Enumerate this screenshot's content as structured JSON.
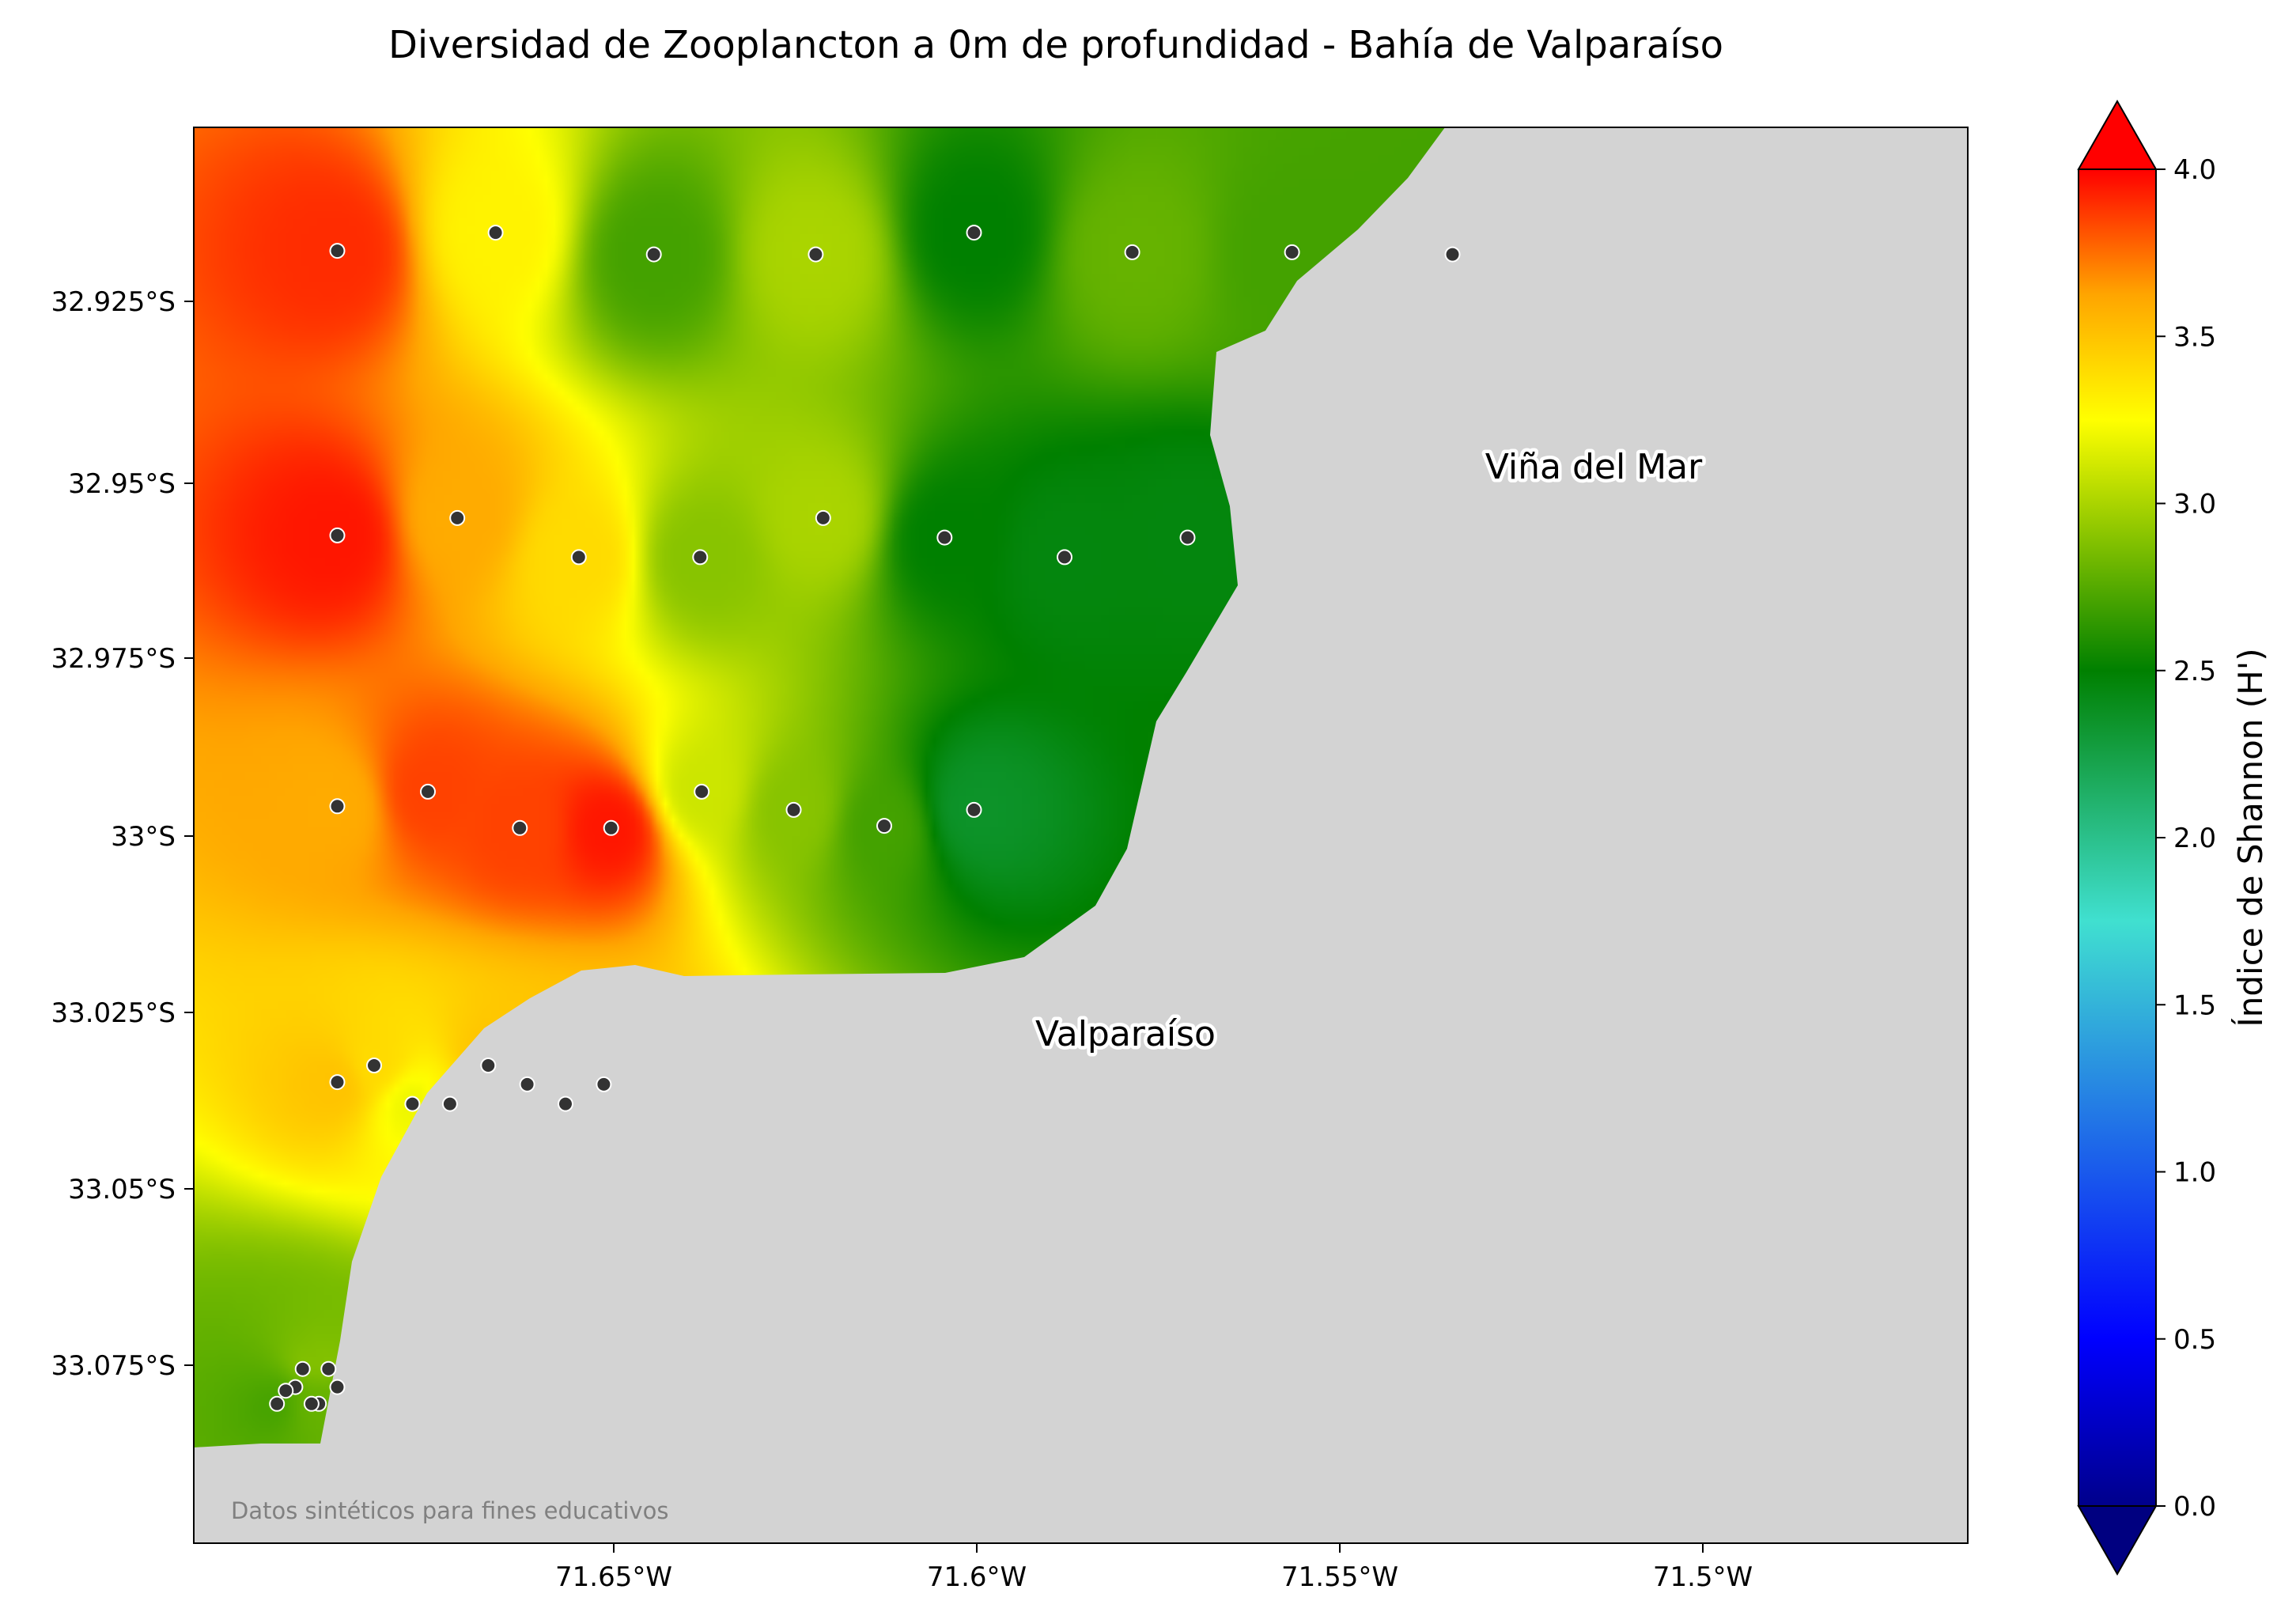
{
  "title": "Diversidad de Zooplancton a 0m de profundidad - Bahía de Valparaíso",
  "x_ticks": [
    "71.65°W",
    "71.6°W",
    "71.55°W",
    "71.5°W"
  ],
  "y_ticks": [
    "32.925°S",
    "32.95°S",
    "32.975°S",
    "33°S",
    "33.025°S",
    "33.05°S",
    "33.075°S"
  ],
  "places": [
    "Viña del Mar",
    "Valparaíso"
  ],
  "colorbar": {
    "label": "Índice de Shannon (H')",
    "ticks": [
      "0.0",
      "0.5",
      "1.0",
      "1.5",
      "2.0",
      "2.5",
      "3.0",
      "3.5",
      "4.0"
    ],
    "colors": [
      "#00008B",
      "#0000FF",
      "#40E0D0",
      "#008000",
      "#FFFF00",
      "#FFA500",
      "#FF0000"
    ],
    "extend": "both"
  },
  "note": "Datos sintéticos para fines educativos",
  "land_color": "#D3D3D3",
  "chart_data": {
    "type": "heatmap",
    "title": "Diversidad de Zooplancton a 0m de profundidad - Bahía de Valparaíso",
    "xlabel": "",
    "ylabel": "",
    "xlim": [
      -71.706,
      -71.465
    ],
    "ylim": [
      -33.101,
      -32.906
    ],
    "value_label": "Índice de Shannon (H')",
    "vmin": 0.0,
    "vmax": 4.0,
    "stations": [
      {
        "lon": -71.6865,
        "lat": -32.923,
        "h": 3.9
      },
      {
        "lon": -71.665,
        "lat": -32.9205,
        "h": 3.3
      },
      {
        "lon": -71.6435,
        "lat": -32.9235,
        "h": 2.7
      },
      {
        "lon": -71.6215,
        "lat": -32.9235,
        "h": 3.0
      },
      {
        "lon": -71.6,
        "lat": -32.9205,
        "h": 2.5
      },
      {
        "lon": -71.5785,
        "lat": -32.9232,
        "h": 2.8
      },
      {
        "lon": -71.5568,
        "lat": -32.9232,
        "h": 2.7
      },
      {
        "lon": -71.535,
        "lat": -32.9235,
        "h": 2.7
      },
      {
        "lon": -71.6865,
        "lat": -32.9622,
        "h": 3.95
      },
      {
        "lon": -71.6702,
        "lat": -32.9598,
        "h": 3.6
      },
      {
        "lon": -71.6537,
        "lat": -32.9652,
        "h": 3.4
      },
      {
        "lon": -71.6372,
        "lat": -32.9652,
        "h": 2.9
      },
      {
        "lon": -71.6205,
        "lat": -32.9598,
        "h": 3.0
      },
      {
        "lon": -71.604,
        "lat": -32.9625,
        "h": 2.5
      },
      {
        "lon": -71.5877,
        "lat": -32.9652,
        "h": 2.45
      },
      {
        "lon": -71.571,
        "lat": -32.9625,
        "h": 2.45
      },
      {
        "lon": -71.6865,
        "lat": -32.9995,
        "h": 3.6
      },
      {
        "lon": -71.6742,
        "lat": -32.9975,
        "h": 3.85
      },
      {
        "lon": -71.6617,
        "lat": -33.0025,
        "h": 3.85
      },
      {
        "lon": -71.6493,
        "lat": -33.0025,
        "h": 3.95
      },
      {
        "lon": -71.637,
        "lat": -32.9975,
        "h": 3.1
      },
      {
        "lon": -71.6245,
        "lat": -33.0,
        "h": 2.9
      },
      {
        "lon": -71.6122,
        "lat": -33.0022,
        "h": 2.7
      },
      {
        "lon": -71.6,
        "lat": -33.0,
        "h": 2.35
      },
      {
        "lon": -71.6865,
        "lat": -33.0375,
        "h": 3.5
      },
      {
        "lon": -71.6815,
        "lat": -33.0352,
        "h": 3.4
      },
      {
        "lon": -71.6763,
        "lat": -33.0405,
        "h": 3.2
      },
      {
        "lon": -71.6712,
        "lat": -33.0405,
        "h": 3.3
      },
      {
        "lon": -71.666,
        "lat": -33.0352,
        "h": 3.5
      },
      {
        "lon": -71.6607,
        "lat": -33.0378,
        "h": 3.5
      },
      {
        "lon": -71.6555,
        "lat": -33.0405,
        "h": 3.5
      },
      {
        "lon": -71.6503,
        "lat": -33.0378,
        "h": 3.5
      },
      {
        "lon": -71.6865,
        "lat": -33.0795,
        "h": 2.8
      },
      {
        "lon": -71.6877,
        "lat": -33.077,
        "h": 2.9
      },
      {
        "lon": -71.6912,
        "lat": -33.077,
        "h": 2.9
      },
      {
        "lon": -71.6922,
        "lat": -33.0795,
        "h": 2.8
      },
      {
        "lon": -71.6935,
        "lat": -33.08,
        "h": 2.7
      },
      {
        "lon": -71.6947,
        "lat": -33.0818,
        "h": 2.7
      },
      {
        "lon": -71.689,
        "lat": -33.0818,
        "h": 2.8
      },
      {
        "lon": -71.69,
        "lat": -33.0818,
        "h": 2.8
      }
    ]
  }
}
